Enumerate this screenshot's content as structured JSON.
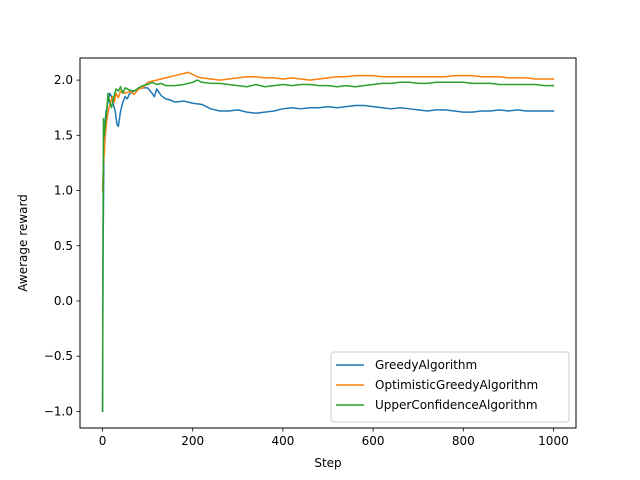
{
  "chart_data": {
    "type": "line",
    "title": "",
    "xlabel": "Step",
    "ylabel": "Awerage reward",
    "xlim": [
      -50,
      1050
    ],
    "ylim": [
      -1.15,
      2.2
    ],
    "xticks": [
      0,
      200,
      400,
      600,
      800,
      1000
    ],
    "xtick_labels": [
      "0",
      "200",
      "400",
      "600",
      "800",
      "1000"
    ],
    "yticks": [
      -1.0,
      -0.5,
      0.0,
      0.5,
      1.0,
      1.5,
      2.0
    ],
    "ytick_labels": [
      "−1.0",
      "−0.5",
      "0.0",
      "0.5",
      "1.0",
      "1.5",
      "2.0"
    ],
    "grid": false,
    "legend_position": "lower-right",
    "series": [
      {
        "name": "GreedyAlgorithm",
        "color": "#1f77b4",
        "points": [
          [
            0,
            -1.0
          ],
          [
            1,
            0.35
          ],
          [
            3,
            1.35
          ],
          [
            5,
            1.6
          ],
          [
            8,
            1.72
          ],
          [
            12,
            1.8
          ],
          [
            16,
            1.88
          ],
          [
            20,
            1.85
          ],
          [
            24,
            1.78
          ],
          [
            28,
            1.72
          ],
          [
            32,
            1.6
          ],
          [
            35,
            1.58
          ],
          [
            40,
            1.72
          ],
          [
            45,
            1.8
          ],
          [
            50,
            1.85
          ],
          [
            55,
            1.83
          ],
          [
            60,
            1.88
          ],
          [
            70,
            1.9
          ],
          [
            80,
            1.92
          ],
          [
            90,
            1.93
          ],
          [
            100,
            1.93
          ],
          [
            110,
            1.88
          ],
          [
            115,
            1.85
          ],
          [
            120,
            1.92
          ],
          [
            130,
            1.86
          ],
          [
            140,
            1.83
          ],
          [
            150,
            1.82
          ],
          [
            160,
            1.8
          ],
          [
            180,
            1.81
          ],
          [
            200,
            1.79
          ],
          [
            220,
            1.78
          ],
          [
            240,
            1.74
          ],
          [
            260,
            1.72
          ],
          [
            280,
            1.72
          ],
          [
            300,
            1.73
          ],
          [
            320,
            1.71
          ],
          [
            340,
            1.7
          ],
          [
            360,
            1.71
          ],
          [
            380,
            1.72
          ],
          [
            400,
            1.74
          ],
          [
            420,
            1.75
          ],
          [
            440,
            1.74
          ],
          [
            460,
            1.75
          ],
          [
            480,
            1.75
          ],
          [
            500,
            1.76
          ],
          [
            520,
            1.75
          ],
          [
            540,
            1.76
          ],
          [
            560,
            1.77
          ],
          [
            580,
            1.77
          ],
          [
            600,
            1.76
          ],
          [
            620,
            1.75
          ],
          [
            640,
            1.74
          ],
          [
            660,
            1.75
          ],
          [
            680,
            1.74
          ],
          [
            700,
            1.73
          ],
          [
            720,
            1.72
          ],
          [
            740,
            1.73
          ],
          [
            760,
            1.73
          ],
          [
            780,
            1.72
          ],
          [
            800,
            1.71
          ],
          [
            820,
            1.71
          ],
          [
            840,
            1.72
          ],
          [
            860,
            1.72
          ],
          [
            880,
            1.73
          ],
          [
            900,
            1.72
          ],
          [
            920,
            1.73
          ],
          [
            940,
            1.72
          ],
          [
            960,
            1.72
          ],
          [
            980,
            1.72
          ],
          [
            1000,
            1.72
          ]
        ]
      },
      {
        "name": "OptimisticGreedyAlgorithm",
        "color": "#ff7f0e",
        "points": [
          [
            0,
            1.0
          ],
          [
            2,
            1.25
          ],
          [
            4,
            1.35
          ],
          [
            6,
            1.5
          ],
          [
            10,
            1.65
          ],
          [
            14,
            1.75
          ],
          [
            18,
            1.8
          ],
          [
            22,
            1.85
          ],
          [
            26,
            1.8
          ],
          [
            30,
            1.88
          ],
          [
            35,
            1.84
          ],
          [
            40,
            1.9
          ],
          [
            50,
            1.88
          ],
          [
            60,
            1.9
          ],
          [
            70,
            1.87
          ],
          [
            80,
            1.92
          ],
          [
            90,
            1.93
          ],
          [
            100,
            1.98
          ],
          [
            120,
            2.0
          ],
          [
            140,
            2.02
          ],
          [
            160,
            2.04
          ],
          [
            180,
            2.06
          ],
          [
            190,
            2.07
          ],
          [
            200,
            2.05
          ],
          [
            210,
            2.03
          ],
          [
            220,
            2.02
          ],
          [
            240,
            2.01
          ],
          [
            260,
            2.0
          ],
          [
            280,
            2.01
          ],
          [
            300,
            2.02
          ],
          [
            320,
            2.03
          ],
          [
            340,
            2.03
          ],
          [
            360,
            2.02
          ],
          [
            380,
            2.02
          ],
          [
            400,
            2.01
          ],
          [
            420,
            2.02
          ],
          [
            440,
            2.01
          ],
          [
            460,
            2.0
          ],
          [
            480,
            2.01
          ],
          [
            500,
            2.02
          ],
          [
            520,
            2.03
          ],
          [
            540,
            2.03
          ],
          [
            560,
            2.04
          ],
          [
            580,
            2.04
          ],
          [
            600,
            2.04
          ],
          [
            620,
            2.03
          ],
          [
            640,
            2.03
          ],
          [
            660,
            2.03
          ],
          [
            680,
            2.03
          ],
          [
            700,
            2.03
          ],
          [
            720,
            2.03
          ],
          [
            740,
            2.03
          ],
          [
            760,
            2.03
          ],
          [
            780,
            2.04
          ],
          [
            800,
            2.04
          ],
          [
            820,
            2.04
          ],
          [
            840,
            2.03
          ],
          [
            860,
            2.03
          ],
          [
            880,
            2.03
          ],
          [
            900,
            2.02
          ],
          [
            920,
            2.02
          ],
          [
            940,
            2.02
          ],
          [
            960,
            2.01
          ],
          [
            980,
            2.01
          ],
          [
            1000,
            2.01
          ]
        ]
      },
      {
        "name": "UpperConfidenceAlgorithm",
        "color": "#2ca02c",
        "points": [
          [
            0,
            -1.0
          ],
          [
            1,
            0.6
          ],
          [
            2,
            1.65
          ],
          [
            4,
            1.5
          ],
          [
            6,
            1.6
          ],
          [
            9,
            1.7
          ],
          [
            12,
            1.88
          ],
          [
            16,
            1.8
          ],
          [
            20,
            1.75
          ],
          [
            25,
            1.85
          ],
          [
            30,
            1.92
          ],
          [
            35,
            1.9
          ],
          [
            40,
            1.94
          ],
          [
            45,
            1.88
          ],
          [
            50,
            1.93
          ],
          [
            60,
            1.91
          ],
          [
            70,
            1.9
          ],
          [
            80,
            1.93
          ],
          [
            90,
            1.95
          ],
          [
            100,
            1.96
          ],
          [
            110,
            1.98
          ],
          [
            120,
            1.96
          ],
          [
            130,
            1.97
          ],
          [
            140,
            1.95
          ],
          [
            160,
            1.95
          ],
          [
            180,
            1.96
          ],
          [
            200,
            1.98
          ],
          [
            210,
            2.0
          ],
          [
            220,
            1.98
          ],
          [
            240,
            1.97
          ],
          [
            260,
            1.97
          ],
          [
            280,
            1.96
          ],
          [
            300,
            1.95
          ],
          [
            320,
            1.94
          ],
          [
            340,
            1.96
          ],
          [
            360,
            1.94
          ],
          [
            380,
            1.95
          ],
          [
            400,
            1.96
          ],
          [
            420,
            1.95
          ],
          [
            440,
            1.96
          ],
          [
            460,
            1.96
          ],
          [
            480,
            1.95
          ],
          [
            500,
            1.95
          ],
          [
            520,
            1.94
          ],
          [
            540,
            1.95
          ],
          [
            560,
            1.94
          ],
          [
            580,
            1.95
          ],
          [
            600,
            1.96
          ],
          [
            620,
            1.97
          ],
          [
            640,
            1.97
          ],
          [
            660,
            1.98
          ],
          [
            680,
            1.98
          ],
          [
            700,
            1.97
          ],
          [
            720,
            1.97
          ],
          [
            740,
            1.98
          ],
          [
            760,
            1.98
          ],
          [
            780,
            1.98
          ],
          [
            800,
            1.98
          ],
          [
            820,
            1.97
          ],
          [
            840,
            1.97
          ],
          [
            860,
            1.97
          ],
          [
            880,
            1.96
          ],
          [
            900,
            1.96
          ],
          [
            920,
            1.96
          ],
          [
            940,
            1.96
          ],
          [
            960,
            1.96
          ],
          [
            980,
            1.95
          ],
          [
            1000,
            1.95
          ]
        ]
      }
    ]
  }
}
